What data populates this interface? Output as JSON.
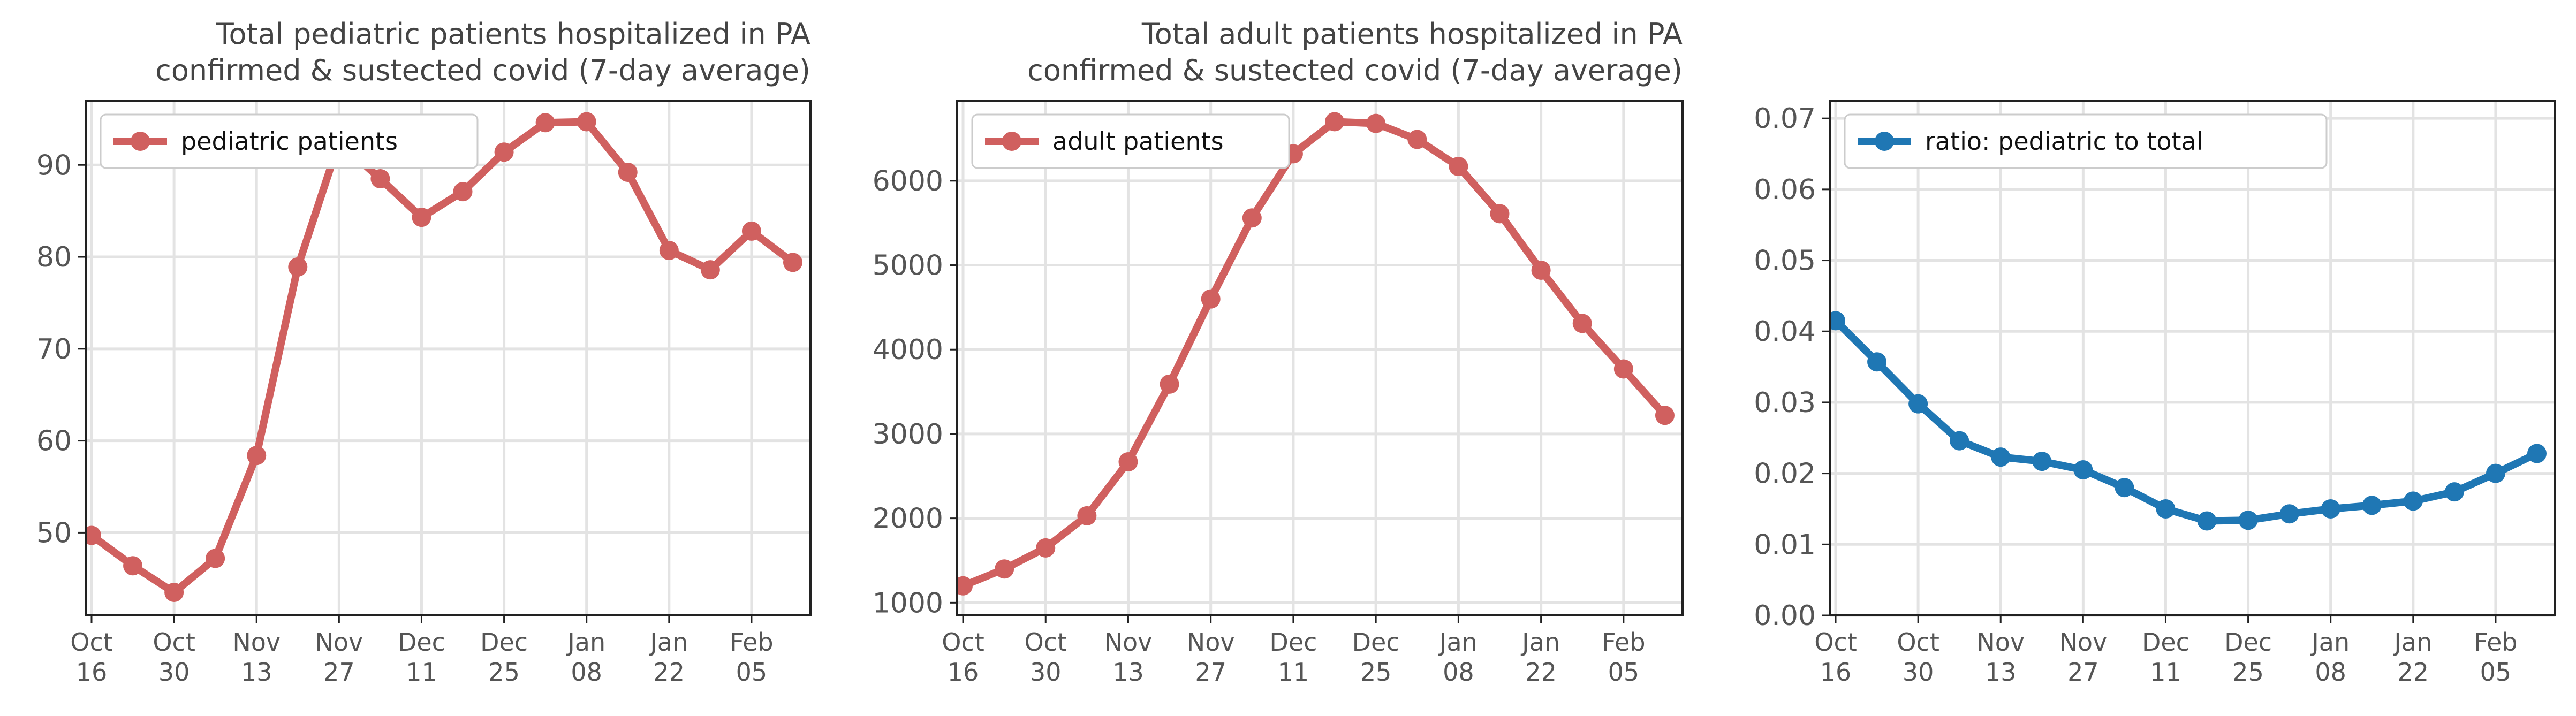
{
  "x_tick_labels": [
    [
      "Oct",
      "16"
    ],
    [
      "Oct",
      "30"
    ],
    [
      "Nov",
      "13"
    ],
    [
      "Nov",
      "27"
    ],
    [
      "Dec",
      "11"
    ],
    [
      "Dec",
      "25"
    ],
    [
      "Jan",
      "08"
    ],
    [
      "Jan",
      "22"
    ],
    [
      "Feb",
      "05"
    ]
  ],
  "chart_data": [
    {
      "type": "line",
      "title": "Total pediatric patients hospitalized in PA",
      "subtitle": "confirmed & sustected covid (7-day average)",
      "x": [
        "2020-10-16",
        "2020-10-23",
        "2020-10-30",
        "2020-11-06",
        "2020-11-13",
        "2020-11-20",
        "2020-11-27",
        "2020-12-04",
        "2020-12-11",
        "2020-12-18",
        "2020-12-25",
        "2021-01-01",
        "2021-01-08",
        "2021-01-15",
        "2021-01-22",
        "2021-01-29",
        "2021-02-05",
        "2021-02-12"
      ],
      "series": [
        {
          "name": "pediatric patients",
          "color": "#d0605f",
          "values": [
            49.7,
            46.4,
            43.5,
            47.2,
            58.4,
            78.9,
            92.5,
            88.5,
            84.3,
            87.1,
            91.4,
            94.6,
            94.7,
            89.2,
            80.7,
            78.6,
            82.8,
            79.4
          ]
        }
      ],
      "ylim": [
        41,
        97
      ],
      "yticks": [
        50,
        60,
        70,
        80,
        90
      ],
      "xlim": [
        "2020-10-15",
        "2021-02-15"
      ],
      "grid": true,
      "legend": "top-left"
    },
    {
      "type": "line",
      "title": "Total adult patients hospitalized in PA",
      "subtitle": "confirmed & sustected covid (7-day average)",
      "x": [
        "2020-10-16",
        "2020-10-23",
        "2020-10-30",
        "2020-11-06",
        "2020-11-13",
        "2020-11-20",
        "2020-11-27",
        "2020-12-04",
        "2020-12-11",
        "2020-12-18",
        "2020-12-25",
        "2021-01-01",
        "2021-01-08",
        "2021-01-15",
        "2021-01-22",
        "2021-01-29",
        "2021-02-05",
        "2021-02-12"
      ],
      "series": [
        {
          "name": "adult patients",
          "color": "#d0605f",
          "values": [
            1200,
            1400,
            1650,
            2030,
            2670,
            3590,
            4600,
            5560,
            6320,
            6700,
            6680,
            6490,
            6170,
            5610,
            4940,
            4310,
            3770,
            3220
          ]
        }
      ],
      "ylim": [
        850,
        6950
      ],
      "yticks": [
        1000,
        2000,
        3000,
        4000,
        5000,
        6000
      ],
      "xlim": [
        "2020-10-15",
        "2021-02-15"
      ],
      "grid": true,
      "legend": "top-left"
    },
    {
      "type": "line",
      "title": "",
      "x": [
        "2020-10-16",
        "2020-10-23",
        "2020-10-30",
        "2020-11-06",
        "2020-11-13",
        "2020-11-20",
        "2020-11-27",
        "2020-12-04",
        "2020-12-11",
        "2020-12-18",
        "2020-12-25",
        "2021-01-01",
        "2021-01-08",
        "2021-01-15",
        "2021-01-22",
        "2021-01-29",
        "2021-02-05",
        "2021-02-12"
      ],
      "series": [
        {
          "name": "ratio: pediatric to total",
          "color": "#1f77b4",
          "values": [
            0.0415,
            0.0357,
            0.0298,
            0.0246,
            0.0223,
            0.0217,
            0.0205,
            0.018,
            0.015,
            0.0133,
            0.0134,
            0.0143,
            0.015,
            0.0155,
            0.0161,
            0.0174,
            0.02,
            0.0228
          ]
        }
      ],
      "ylim": [
        0.0,
        0.0725
      ],
      "yticks": [
        0.0,
        0.01,
        0.02,
        0.03,
        0.04,
        0.05,
        0.06,
        0.07
      ],
      "ytick_labels": [
        "0.00",
        "0.01",
        "0.02",
        "0.03",
        "0.04",
        "0.05",
        "0.06",
        "0.07"
      ],
      "xlim": [
        "2020-10-15",
        "2021-02-15"
      ],
      "grid": true,
      "legend": "top-left"
    }
  ]
}
